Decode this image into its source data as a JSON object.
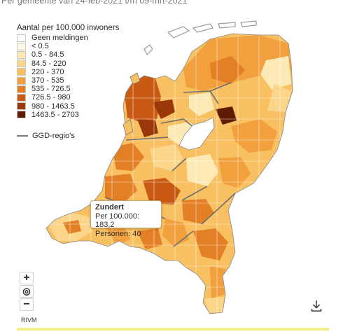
{
  "subtitle": "Per gemeente van 24-feb-2021 t/m 09-mrt-2021",
  "legend": {
    "title": "Aantal per 100.000 inwoners",
    "items": [
      {
        "label": "Geen meldingen",
        "color": "#ffffff"
      },
      {
        "label": "< 0.5",
        "color": "#fff9e1"
      },
      {
        "label": "0.5 - 84.5",
        "color": "#fde9b5"
      },
      {
        "label": "84.5 - 220",
        "color": "#fbd68a"
      },
      {
        "label": "220 - 370",
        "color": "#f8c060"
      },
      {
        "label": "370 - 535",
        "color": "#f2a03e"
      },
      {
        "label": "535 - 726.5",
        "color": "#e37f25"
      },
      {
        "label": "726.5 - 980",
        "color": "#c85a14"
      },
      {
        "label": "980 - 1463.5",
        "color": "#9a380a"
      },
      {
        "label": "1463.5 - 2703",
        "color": "#5f1c03"
      }
    ],
    "ggd_label": "GGD-regio's"
  },
  "tooltip": {
    "title": "Zundert",
    "line1": "Per 100.000: 183,2",
    "line2": "Personen: 40"
  },
  "controls": {
    "zoom_in": "+",
    "reset": "◎",
    "zoom_out": "−"
  },
  "credit": "RIVM"
}
